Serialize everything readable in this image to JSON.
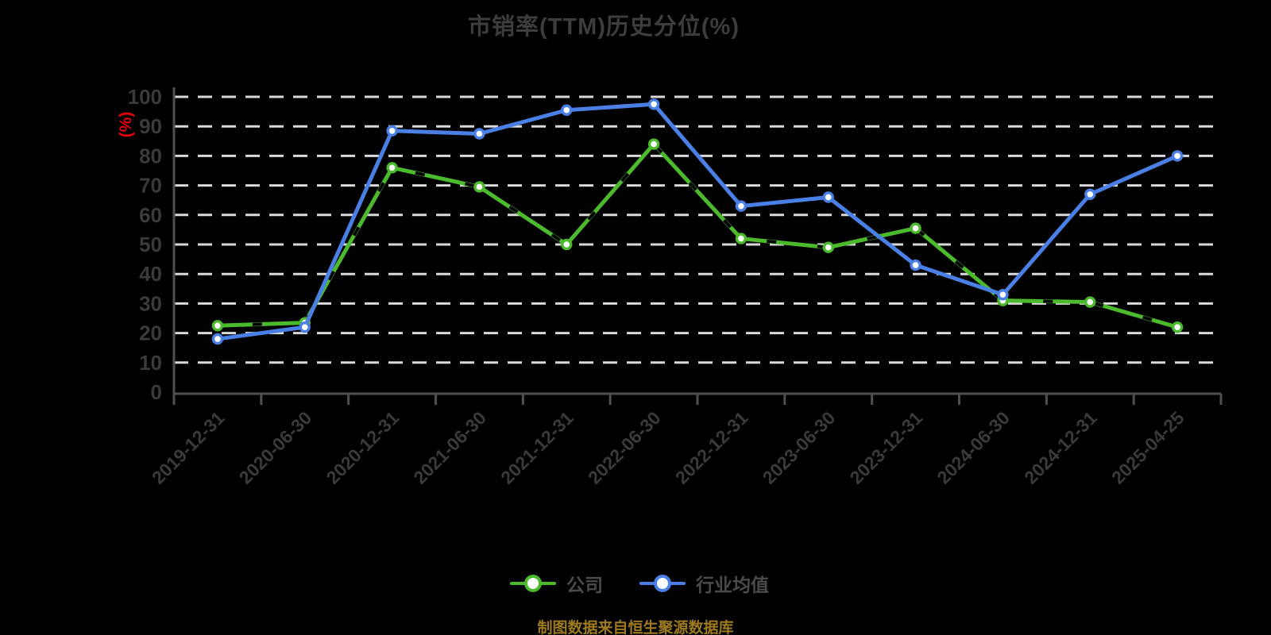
{
  "title": "市销率(TTM)历史分位(%)",
  "caption": "制图数据来自恒生聚源数据库",
  "colors": {
    "background": "#000000",
    "title_text": "#3d3d3d",
    "axis_line": "#4f4f4f",
    "axis_label": "#3a3a3a",
    "gridline": "#d9d9d9",
    "marker_fill": "#ffffff",
    "y_unit_label": "#e8000a",
    "legend_text": "#4a4a4a",
    "caption_text": "#9d7a1f",
    "company_series": "#4cba2d",
    "industry_series": "#4a80e6"
  },
  "chart_data": {
    "type": "line",
    "title": "市销率(TTM)历史分位(%)",
    "xlabel": "",
    "ylabel": "(%)",
    "ylim": [
      0,
      100
    ],
    "y_tick_labels": [
      "0",
      "10",
      "20",
      "30",
      "40",
      "50",
      "60",
      "70",
      "80",
      "90",
      "100"
    ],
    "grid": "horizontal-dashed",
    "legend_position": "bottom",
    "categories": [
      "2019-12-31",
      "2020-06-30",
      "2020-12-31",
      "2021-06-30",
      "2021-12-31",
      "2022-06-30",
      "2022-12-31",
      "2023-06-30",
      "2023-12-31",
      "2024-06-30",
      "2024-12-31",
      "2025-04-25"
    ],
    "series": [
      {
        "id": "company",
        "name": "公司",
        "color": "#4cba2d",
        "values": [
          22.5,
          23.5,
          76,
          69.5,
          50,
          84,
          52,
          49,
          55.5,
          31,
          30.5,
          22
        ]
      },
      {
        "id": "industry-average",
        "name": "行业均值",
        "color": "#4a80e6",
        "values": [
          18,
          22,
          88.5,
          87.5,
          95.5,
          97.5,
          63,
          66,
          43,
          33,
          67,
          80
        ]
      }
    ]
  }
}
